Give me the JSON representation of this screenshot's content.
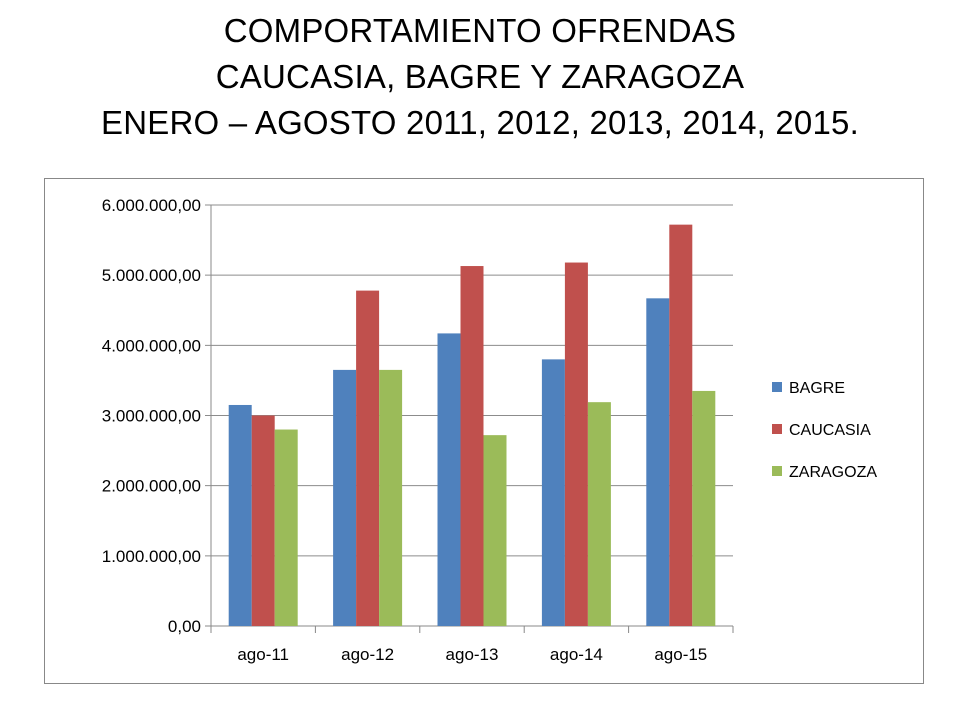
{
  "title": {
    "line1": "COMPORTAMIENTO OFRENDAS",
    "line2": "CAUCASIA, BAGRE Y ZARAGOZA",
    "line3": "ENERO – AGOSTO 2011, 2012, 2013, 2014, 2015."
  },
  "chart_data": {
    "type": "bar",
    "categories": [
      "ago-11",
      "ago-12",
      "ago-13",
      "ago-14",
      "ago-15"
    ],
    "series": [
      {
        "name": "BAGRE",
        "color": "#4F81BD",
        "values": [
          3150000,
          3650000,
          4170000,
          3800000,
          4670000
        ]
      },
      {
        "name": "CAUCASIA",
        "color": "#C0504D",
        "values": [
          3000000,
          4780000,
          5130000,
          5180000,
          5720000
        ]
      },
      {
        "name": "ZARAGOZA",
        "color": "#9BBB59",
        "values": [
          2800000,
          3650000,
          2720000,
          3190000,
          3350000
        ]
      }
    ],
    "ylim": [
      0,
      6000000
    ],
    "yticks": [
      0,
      1000000,
      2000000,
      3000000,
      4000000,
      5000000,
      6000000
    ],
    "ytick_labels": [
      "0,00",
      "1.000.000,00",
      "2.000.000,00",
      "3.000.000,00",
      "4.000.000,00",
      "5.000.000,00",
      "6.000.000,00"
    ],
    "grid": true,
    "legend": "right",
    "xlabel": "",
    "ylabel": ""
  }
}
